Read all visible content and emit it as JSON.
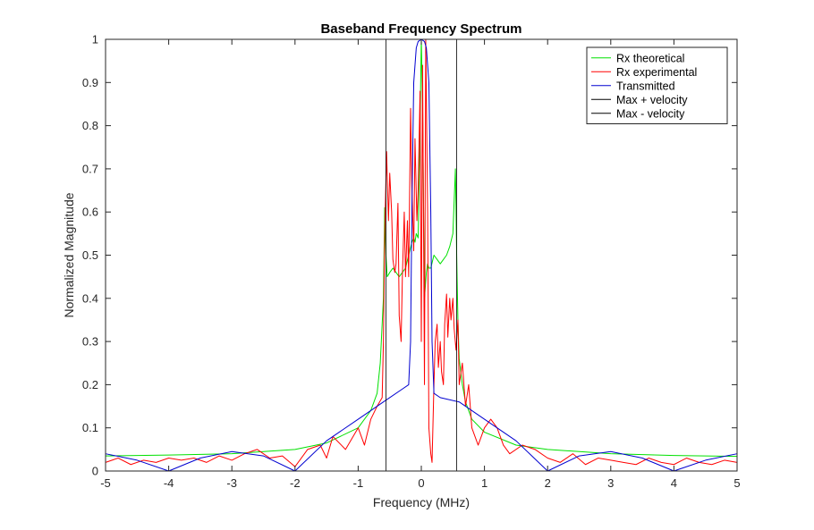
{
  "chart_data": {
    "type": "line",
    "title": "Baseband Frequency Spectrum",
    "xlabel": "Frequency (MHz)",
    "ylabel": "Normalized Magnitude",
    "xlim": [
      -5,
      5
    ],
    "ylim": [
      0,
      1
    ],
    "xticks": [
      -5,
      -4,
      -3,
      -2,
      -1,
      0,
      1,
      2,
      3,
      4,
      5
    ],
    "yticks": [
      0,
      0.1,
      0.2,
      0.3,
      0.4,
      0.5,
      0.6,
      0.7,
      0.8,
      0.9,
      1
    ],
    "grid": false,
    "legend_position": "top-right",
    "series": [
      {
        "name": "Rx theoretical",
        "color": "#00e000",
        "x": [
          -5,
          -4,
          -3,
          -2,
          -1.5,
          -1.0,
          -0.8,
          -0.7,
          -0.65,
          -0.6,
          -0.58,
          -0.56,
          -0.54,
          -0.5,
          -0.45,
          -0.4,
          -0.35,
          -0.3,
          -0.25,
          -0.2,
          -0.15,
          -0.12,
          -0.1,
          -0.08,
          -0.05,
          -0.02,
          0,
          0.02,
          0.05,
          0.08,
          0.1,
          0.12,
          0.15,
          0.2,
          0.25,
          0.3,
          0.35,
          0.4,
          0.45,
          0.5,
          0.54,
          0.56,
          0.58,
          0.6,
          0.65,
          0.7,
          0.8,
          1.0,
          1.5,
          2,
          3,
          4,
          5
        ],
        "y": [
          0.035,
          0.037,
          0.04,
          0.05,
          0.065,
          0.1,
          0.14,
          0.18,
          0.25,
          0.4,
          0.61,
          0.5,
          0.45,
          0.46,
          0.47,
          0.46,
          0.45,
          0.46,
          0.47,
          0.5,
          0.53,
          0.54,
          0.53,
          0.55,
          0.54,
          0.8,
          1.0,
          0.85,
          0.4,
          0.46,
          0.48,
          0.47,
          0.47,
          0.5,
          0.49,
          0.48,
          0.49,
          0.5,
          0.52,
          0.55,
          0.7,
          0.5,
          0.35,
          0.26,
          0.2,
          0.16,
          0.12,
          0.09,
          0.06,
          0.05,
          0.04,
          0.036,
          0.034
        ]
      },
      {
        "name": "Rx experimental",
        "color": "#ff0000",
        "x": [
          -5,
          -4.8,
          -4.6,
          -4.4,
          -4.2,
          -4,
          -3.8,
          -3.6,
          -3.4,
          -3.2,
          -3,
          -2.8,
          -2.6,
          -2.4,
          -2.2,
          -2,
          -1.8,
          -1.6,
          -1.5,
          -1.4,
          -1.2,
          -1,
          -0.9,
          -0.8,
          -0.7,
          -0.62,
          -0.6,
          -0.58,
          -0.55,
          -0.52,
          -0.5,
          -0.47,
          -0.45,
          -0.42,
          -0.4,
          -0.37,
          -0.35,
          -0.32,
          -0.3,
          -0.27,
          -0.25,
          -0.22,
          -0.2,
          -0.17,
          -0.15,
          -0.12,
          -0.1,
          -0.07,
          -0.05,
          -0.02,
          0,
          0.02,
          0.05,
          0.07,
          0.1,
          0.12,
          0.15,
          0.17,
          0.2,
          0.22,
          0.25,
          0.27,
          0.3,
          0.32,
          0.35,
          0.37,
          0.4,
          0.42,
          0.45,
          0.47,
          0.5,
          0.52,
          0.55,
          0.58,
          0.6,
          0.65,
          0.7,
          0.75,
          0.8,
          0.9,
          1.0,
          1.1,
          1.2,
          1.3,
          1.4,
          1.6,
          1.8,
          2,
          2.2,
          2.4,
          2.6,
          2.8,
          3,
          3.2,
          3.4,
          3.6,
          3.8,
          4,
          4.2,
          4.4,
          4.6,
          4.8,
          5
        ],
        "y": [
          0.02,
          0.03,
          0.015,
          0.025,
          0.02,
          0.03,
          0.025,
          0.03,
          0.02,
          0.035,
          0.025,
          0.04,
          0.05,
          0.03,
          0.035,
          0.01,
          0.05,
          0.06,
          0.03,
          0.08,
          0.05,
          0.1,
          0.06,
          0.12,
          0.15,
          0.17,
          0.3,
          0.55,
          0.74,
          0.58,
          0.69,
          0.6,
          0.49,
          0.46,
          0.48,
          0.62,
          0.36,
          0.3,
          0.45,
          0.6,
          0.45,
          0.58,
          0.45,
          0.84,
          0.66,
          0.51,
          0.77,
          0.58,
          0.65,
          0.88,
          0.3,
          0.94,
          0.2,
          1.0,
          0.6,
          0.1,
          0.04,
          0.02,
          0.2,
          0.3,
          0.34,
          0.24,
          0.3,
          0.23,
          0.2,
          0.34,
          0.41,
          0.31,
          0.4,
          0.35,
          0.4,
          0.33,
          0.28,
          0.35,
          0.2,
          0.25,
          0.15,
          0.2,
          0.1,
          0.06,
          0.1,
          0.12,
          0.1,
          0.06,
          0.04,
          0.06,
          0.05,
          0.03,
          0.02,
          0.04,
          0.015,
          0.03,
          0.025,
          0.02,
          0.015,
          0.03,
          0.02,
          0.015,
          0.03,
          0.02,
          0.015,
          0.025,
          0.02
        ]
      },
      {
        "name": "Transmitted",
        "color": "#0000d0",
        "x": [
          -5,
          -4.5,
          -4,
          -3.5,
          -3,
          -2.5,
          -2,
          -1.5,
          -1.0,
          -0.6,
          -0.3,
          -0.2,
          -0.17,
          -0.15,
          -0.12,
          -0.08,
          -0.05,
          0,
          0.05,
          0.08,
          0.12,
          0.15,
          0.17,
          0.2,
          0.3,
          0.6,
          1.0,
          1.5,
          2,
          2.5,
          3,
          3.5,
          4,
          4.5,
          5
        ],
        "y": [
          0.04,
          0.025,
          0.0,
          0.03,
          0.045,
          0.035,
          0.0,
          0.07,
          0.12,
          0.16,
          0.19,
          0.2,
          0.3,
          0.6,
          0.9,
          0.98,
          0.995,
          1.0,
          0.995,
          0.98,
          0.9,
          0.6,
          0.3,
          0.18,
          0.17,
          0.16,
          0.12,
          0.07,
          0.0,
          0.035,
          0.045,
          0.03,
          0.0,
          0.025,
          0.04
        ]
      },
      {
        "name": "Max + velocity",
        "color": "#000000",
        "x": [
          -0.56,
          -0.56
        ],
        "y": [
          0,
          1
        ]
      },
      {
        "name": "Max - velocity",
        "color": "#000000",
        "x": [
          0.56,
          0.56
        ],
        "y": [
          0,
          1
        ]
      }
    ]
  }
}
